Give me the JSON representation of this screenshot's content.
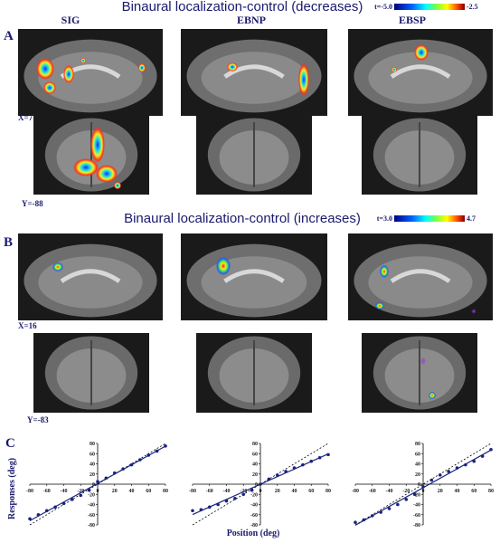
{
  "titles": {
    "decreases": "Binaural localization-control (decreases)",
    "increases": "Binaural localization-control (increases)"
  },
  "colorbars": [
    {
      "min": "t=-5.0",
      "max": "-2.5"
    },
    {
      "min": "t=3.0",
      "max": "4.7"
    }
  ],
  "panels": [
    "A",
    "B",
    "C"
  ],
  "columns": [
    "SIG",
    "EBNP",
    "EBSP"
  ],
  "coordinates": [
    "X=7",
    "Y=-88",
    "X=16",
    "Y=-83"
  ],
  "panel_c": {
    "ylabel": "Responses (deg)",
    "xlabel": "Position (deg)"
  },
  "chart_data": [
    {
      "type": "scatter",
      "color": "#1a237e",
      "x": [
        -80,
        -70,
        -60,
        -50,
        -40,
        -30,
        -20,
        -10,
        0,
        10,
        20,
        30,
        40,
        50,
        60,
        70,
        80
      ],
      "values": [
        -68,
        -60,
        -52,
        -45,
        -38,
        -30,
        -22,
        -12,
        5,
        12,
        22,
        30,
        38,
        48,
        57,
        65,
        75
      ],
      "xlim": [
        -80,
        80
      ],
      "ylim": [
        -80,
        80
      ],
      "xticks": [
        -80,
        -60,
        -40,
        -20,
        0,
        20,
        40,
        60,
        80
      ],
      "yticks": [
        -80,
        -60,
        -40,
        -20,
        0,
        20,
        40,
        60,
        80
      ]
    },
    {
      "type": "scatter",
      "color": "#1a237e",
      "x": [
        -80,
        -70,
        -60,
        -50,
        -40,
        -30,
        -20,
        -10,
        0,
        10,
        20,
        30,
        40,
        50,
        60,
        70,
        80
      ],
      "values": [
        -52,
        -50,
        -45,
        -40,
        -33,
        -28,
        -20,
        -12,
        0,
        10,
        18,
        25,
        32,
        38,
        45,
        52,
        58
      ],
      "xlim": [
        -80,
        80
      ],
      "ylim": [
        -80,
        80
      ],
      "xticks": [
        -80,
        -60,
        -40,
        -20,
        0,
        20,
        40,
        60,
        80
      ],
      "yticks": [
        -80,
        -60,
        -40,
        -20,
        0,
        20,
        40,
        60,
        80
      ]
    },
    {
      "type": "scatter",
      "color": "#1a237e",
      "x": [
        -80,
        -70,
        -60,
        -50,
        -40,
        -30,
        -20,
        -10,
        0,
        10,
        20,
        30,
        40,
        50,
        60,
        70,
        80
      ],
      "values": [
        -75,
        -70,
        -62,
        -55,
        -48,
        -40,
        -30,
        -20,
        -5,
        8,
        18,
        25,
        32,
        38,
        45,
        55,
        68
      ],
      "xlim": [
        -80,
        80
      ],
      "ylim": [
        -80,
        80
      ],
      "xticks": [
        -80,
        -60,
        -40,
        -20,
        0,
        20,
        40,
        60,
        80
      ],
      "yticks": [
        -80,
        -60,
        -40,
        -20,
        0,
        20,
        40,
        60,
        80
      ]
    }
  ]
}
